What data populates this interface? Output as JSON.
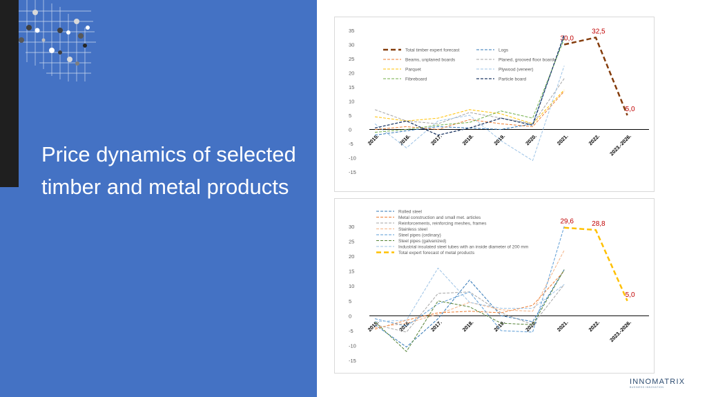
{
  "slide": {
    "title": "Price dynamics of selected timber and metal products",
    "logo": "INNOMATRIX",
    "logo_tagline": "BUSINESS INNOVATION"
  },
  "colors": {
    "panel": "#4472c4",
    "label_red": "#c00000"
  },
  "chart_data": [
    {
      "type": "line",
      "categories": [
        "2015.",
        "2016.",
        "2017.",
        "2018.",
        "2019.",
        "2020.",
        "2021.",
        "2022.",
        "2023.-2026."
      ],
      "ylim": [
        -15,
        35
      ],
      "yticks": [
        35,
        30,
        25,
        20,
        15,
        10,
        5,
        0,
        -5,
        -10,
        -15
      ],
      "legend_columns": 2,
      "legend_position": "top-left",
      "series": [
        {
          "name": "Total timber expert forecast",
          "color": "#843c0c",
          "width": 2.5,
          "dash": "7,4",
          "values": [
            null,
            null,
            null,
            null,
            null,
            null,
            30.0,
            32.5,
            5.0
          ],
          "labels": [
            "",
            "",
            "",
            "",
            "",
            "",
            "30,0",
            "32,5",
            "5,0"
          ]
        },
        {
          "name": "Logs",
          "color": "#2e75b6",
          "width": 1,
          "dash": "4,2",
          "values": [
            -2,
            -0.5,
            1,
            0.5,
            0,
            2,
            33,
            null,
            null
          ]
        },
        {
          "name": "Beams, unplaned boards",
          "color": "#ed7d31",
          "width": 1,
          "dash": "4,2",
          "values": [
            0,
            1,
            0,
            3.5,
            2,
            1,
            13.5,
            null,
            null
          ]
        },
        {
          "name": "Planed, grooved floor boards",
          "color": "#a5a5a5",
          "width": 1,
          "dash": "4,2",
          "values": [
            7,
            3,
            2,
            6,
            4,
            2,
            18,
            null,
            null
          ]
        },
        {
          "name": "Parquet",
          "color": "#ffc000",
          "width": 1,
          "dash": "4,2",
          "values": [
            4.5,
            3,
            4,
            7,
            5.5,
            2,
            14,
            null,
            null
          ]
        },
        {
          "name": "Plywood (veneer)",
          "color": "#9dc3e6",
          "width": 1,
          "dash": "4,2",
          "values": [
            2,
            -6.5,
            3,
            5,
            -4,
            -11,
            22.5,
            null,
            null
          ]
        },
        {
          "name": "Fibreboard",
          "color": "#70ad47",
          "width": 1,
          "dash": "4,2",
          "values": [
            -1,
            0,
            1.5,
            2.5,
            6.5,
            4,
            32,
            null,
            null
          ]
        },
        {
          "name": "Particle board",
          "color": "#1f3864",
          "width": 1.3,
          "dash": "4,2",
          "values": [
            0.5,
            3,
            -2,
            0.5,
            4,
            1.5,
            33.5,
            null,
            null
          ]
        }
      ]
    },
    {
      "type": "line",
      "categories": [
        "2015.",
        "2016.",
        "2017.",
        "2018.",
        "2019.",
        "2020.",
        "2021.",
        "2022.",
        "2023.-2026."
      ],
      "ylim": [
        -15,
        33
      ],
      "yticks": [
        30,
        25,
        20,
        15,
        10,
        5,
        0,
        -5,
        -10,
        -15
      ],
      "legend_columns": 1,
      "legend_position": "top-left",
      "series": [
        {
          "name": "Rolled steel",
          "color": "#2e75b6",
          "width": 1,
          "dash": "4,2",
          "values": [
            -3,
            -10.5,
            -1,
            12,
            0,
            -2,
            15.5,
            null,
            null
          ]
        },
        {
          "name": "Metal construction and small met. articles",
          "color": "#ed7d31",
          "width": 1,
          "dash": "4,2",
          "values": [
            -4.5,
            -1.5,
            1,
            1.5,
            1,
            3.5,
            15,
            null,
            null
          ]
        },
        {
          "name": "Reinforcements, reinforcing meshes, frames",
          "color": "#a5a5a5",
          "width": 1,
          "dash": "4,2",
          "values": [
            -3,
            -5.5,
            7.5,
            8,
            1,
            -3,
            10.5,
            null,
            null
          ]
        },
        {
          "name": "Stainless steel",
          "color": "#f4b183",
          "width": 1,
          "dash": "4,2",
          "values": [
            -4,
            -2.5,
            0.5,
            4.5,
            2,
            1.5,
            22,
            null,
            null
          ]
        },
        {
          "name": "Steel pipes (ordinary)",
          "color": "#5b9bd5",
          "width": 1,
          "dash": "4,2",
          "values": [
            -1,
            -3.5,
            4,
            8,
            -5,
            -5.5,
            30,
            null,
            null
          ]
        },
        {
          "name": "Steel pipes (galvanized)",
          "color": "#548235",
          "width": 1,
          "dash": "4,2",
          "values": [
            -2,
            -12,
            5,
            3,
            -2.5,
            -3,
            15.5,
            null,
            null
          ]
        },
        {
          "name": "Industrial insulated steel tubes with an inside diameter of 200 mm",
          "color": "#9dc3e6",
          "width": 1,
          "dash": "4,2",
          "values": [
            -2,
            -1.5,
            16,
            4.5,
            2.5,
            2.5,
            10.5,
            null,
            null
          ]
        },
        {
          "name": "Total expert forecast of metal products",
          "color": "#ffc000",
          "width": 2.5,
          "dash": "7,4",
          "values": [
            null,
            null,
            null,
            null,
            null,
            null,
            29.6,
            28.8,
            5.0
          ],
          "labels": [
            "",
            "",
            "",
            "",
            "",
            "",
            "29,6",
            "28,8",
            "5,0"
          ]
        }
      ]
    }
  ]
}
